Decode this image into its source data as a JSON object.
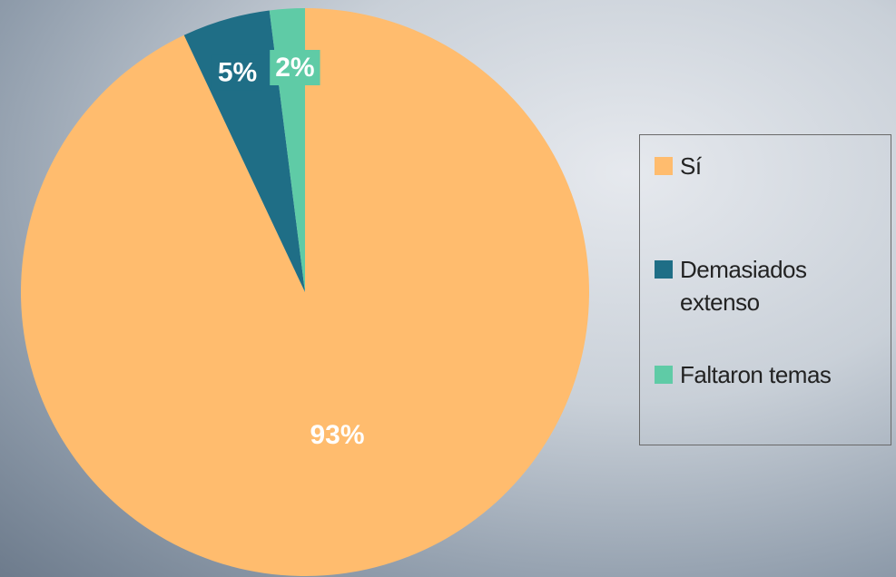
{
  "chart_data": {
    "type": "pie",
    "categories": [
      "Sí",
      "Demasiados extenso",
      "Faltaron temas"
    ],
    "values": [
      93,
      5,
      2
    ],
    "value_labels": [
      "93%",
      "5%",
      "2%"
    ],
    "colors": [
      "#ffbc6e",
      "#1f6e86",
      "#5fcba6"
    ],
    "legend": "right"
  }
}
